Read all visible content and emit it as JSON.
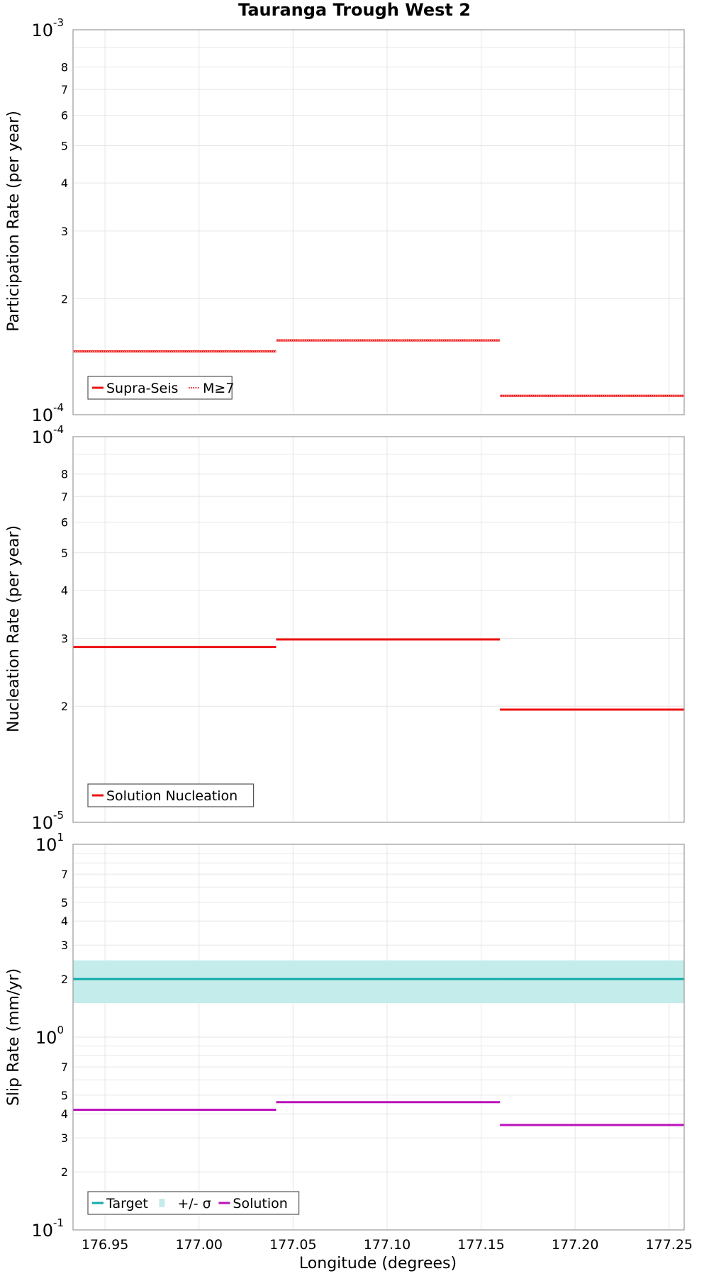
{
  "title": "Tauranga Trough West 2",
  "xlabel": "Longitude (degrees)",
  "x_ticks": [
    "176.95",
    "177.00",
    "177.05",
    "177.10",
    "177.15",
    "177.20",
    "177.25"
  ],
  "colors": {
    "solution_red": "#ee1111",
    "target_teal": "#11aaaa",
    "sigma_fill": "#c4ecea",
    "solution_purple": "#bb11bb",
    "frame": "#9a9a9a",
    "grid": "#e6e6e6"
  },
  "chart_data": [
    {
      "type": "line",
      "id": "participation",
      "ylabel": "Participation Rate (per year)",
      "yscale": "log",
      "ylim": [
        0.0001,
        0.001
      ],
      "xlim": [
        176.933,
        177.258
      ],
      "major_tick_labels": [
        {
          "value": 0.001,
          "base": "10",
          "exp": "-3"
        },
        {
          "value": 0.0001,
          "base": "10",
          "exp": "-4"
        }
      ],
      "minor_tick_labels": [
        {
          "value": 0.0008,
          "label": "8"
        },
        {
          "value": 0.0007,
          "label": "7"
        },
        {
          "value": 0.0006,
          "label": "6"
        },
        {
          "value": 0.0005,
          "label": "5"
        },
        {
          "value": 0.0004,
          "label": "4"
        },
        {
          "value": 0.0003,
          "label": "3"
        },
        {
          "value": 0.0002,
          "label": "2"
        }
      ],
      "series": [
        {
          "name": "Supra-Seis",
          "style": "solid",
          "color": "#ee1111",
          "segments": [
            {
              "x0": 176.933,
              "x1": 177.041,
              "y": 0.000146
            },
            {
              "x0": 177.041,
              "x1": 177.16,
              "y": 0.000156
            },
            {
              "x0": 177.16,
              "x1": 177.258,
              "y": 0.000112
            }
          ]
        },
        {
          "name": "M≥7",
          "style": "dotted",
          "color": "#ee1111",
          "segments": [
            {
              "x0": 176.933,
              "x1": 177.041,
              "y": 0.000146
            },
            {
              "x0": 177.041,
              "x1": 177.16,
              "y": 0.000156
            },
            {
              "x0": 177.16,
              "x1": 177.258,
              "y": 0.000112
            }
          ]
        }
      ],
      "legend": [
        {
          "label": "Supra-Seis",
          "kind": "solid",
          "color": "#ee1111"
        },
        {
          "label": "M≥7",
          "kind": "dotted",
          "color": "#ee1111"
        }
      ]
    },
    {
      "type": "line",
      "id": "nucleation",
      "ylabel": "Nucleation Rate (per year)",
      "yscale": "log",
      "ylim": [
        1e-05,
        0.0001
      ],
      "xlim": [
        176.933,
        177.258
      ],
      "major_tick_labels": [
        {
          "value": 0.0001,
          "base": "10",
          "exp": "-4"
        },
        {
          "value": 1e-05,
          "base": "10",
          "exp": "-5"
        }
      ],
      "minor_tick_labels": [
        {
          "value": 8e-05,
          "label": "8"
        },
        {
          "value": 7e-05,
          "label": "7"
        },
        {
          "value": 6e-05,
          "label": "6"
        },
        {
          "value": 5e-05,
          "label": "5"
        },
        {
          "value": 4e-05,
          "label": "4"
        },
        {
          "value": 3e-05,
          "label": "3"
        },
        {
          "value": 2e-05,
          "label": "2"
        }
      ],
      "series": [
        {
          "name": "Solution Nucleation",
          "style": "solid",
          "color": "#ee1111",
          "segments": [
            {
              "x0": 176.933,
              "x1": 177.041,
              "y": 2.85e-05
            },
            {
              "x0": 177.041,
              "x1": 177.16,
              "y": 2.98e-05
            },
            {
              "x0": 177.16,
              "x1": 177.258,
              "y": 1.96e-05
            }
          ]
        }
      ],
      "legend": [
        {
          "label": "Solution Nucleation",
          "kind": "solid",
          "color": "#ee1111"
        }
      ]
    },
    {
      "type": "line",
      "id": "slip",
      "ylabel": "Slip Rate (mm/yr)",
      "yscale": "log",
      "ylim": [
        0.1,
        10
      ],
      "xlim": [
        176.933,
        177.258
      ],
      "major_tick_labels": [
        {
          "value": 10,
          "base": "10",
          "exp": "1"
        },
        {
          "value": 1,
          "base": "10",
          "exp": "0"
        },
        {
          "value": 0.1,
          "base": "10",
          "exp": "-1"
        }
      ],
      "minor_tick_labels": [
        {
          "value": 7,
          "label": "7"
        },
        {
          "value": 5,
          "label": "5"
        },
        {
          "value": 4,
          "label": "4"
        },
        {
          "value": 3,
          "label": "3"
        },
        {
          "value": 2,
          "label": "2"
        },
        {
          "value": 0.7,
          "label": "7"
        },
        {
          "value": 0.5,
          "label": "5"
        },
        {
          "value": 0.4,
          "label": "4"
        },
        {
          "value": 0.3,
          "label": "3"
        },
        {
          "value": 0.2,
          "label": "2"
        }
      ],
      "band": {
        "name": "+/- σ",
        "color": "#c4ecea",
        "segments": [
          {
            "x0": 176.933,
            "x1": 177.258,
            "low": 1.5,
            "high": 2.5
          }
        ]
      },
      "series": [
        {
          "name": "Target",
          "style": "solid",
          "color": "#11aaaa",
          "segments": [
            {
              "x0": 176.933,
              "x1": 177.041,
              "y": 2.0
            },
            {
              "x0": 177.041,
              "x1": 177.16,
              "y": 2.0
            },
            {
              "x0": 177.16,
              "x1": 177.258,
              "y": 2.0
            }
          ]
        },
        {
          "name": "Solution",
          "style": "solid",
          "color": "#bb11bb",
          "segments": [
            {
              "x0": 176.933,
              "x1": 177.041,
              "y": 0.42
            },
            {
              "x0": 177.041,
              "x1": 177.16,
              "y": 0.46
            },
            {
              "x0": 177.16,
              "x1": 177.258,
              "y": 0.35
            }
          ]
        }
      ],
      "legend": [
        {
          "label": "Target",
          "kind": "solid",
          "color": "#11aaaa"
        },
        {
          "label": "+/- σ",
          "kind": "band",
          "color": "#c4ecea"
        },
        {
          "label": "Solution",
          "kind": "solid",
          "color": "#bb11bb"
        }
      ]
    }
  ]
}
